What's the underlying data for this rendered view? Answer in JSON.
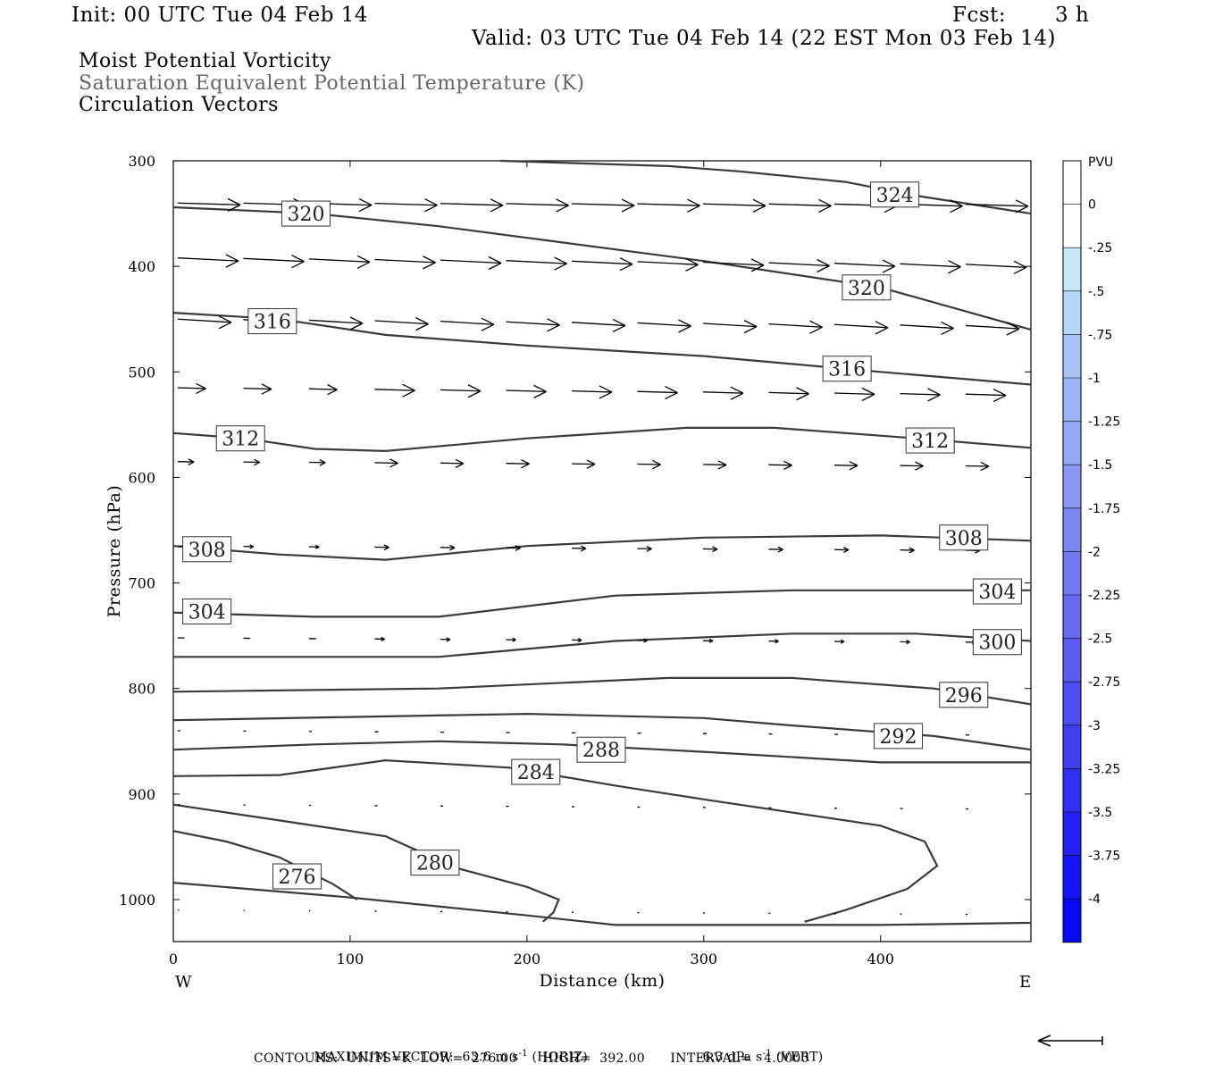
{
  "header": {
    "init": "Init: 00 UTC Tue 04 Feb 14",
    "fcst_label": "Fcst:",
    "fcst_value": "3 h",
    "valid": "Valid: 03 UTC Tue 04 Feb 14 (22 EST Mon 03 Feb 14)"
  },
  "titles": {
    "line1": "Moist Potential Vorticity",
    "line2": "Saturation Equivalent Potential Temperature (K)",
    "line3": "Circulation Vectors"
  },
  "colors": {
    "contour": "#3a3a3a",
    "title_gray": "#666666",
    "colorbar": [
      "#ffffff",
      "#ffffff",
      "#c8e8fa",
      "#b4d8fa",
      "#a8c4f8",
      "#9cb4f6",
      "#92a8f6",
      "#8898f4",
      "#7c88f2",
      "#7278f2",
      "#6868f0",
      "#5a5af0",
      "#4c4cf0",
      "#3e3ef2",
      "#3030f2",
      "#2222f4",
      "#1414f6",
      "#0808f8"
    ]
  },
  "chart_data": {
    "type": "line",
    "xlabel": "Distance (km)",
    "ylabel": "Pressure (hPa)",
    "xlim": [
      0,
      485
    ],
    "ylim": [
      1040,
      300
    ],
    "x_ticks": [
      "0",
      "100",
      "200",
      "300",
      "400"
    ],
    "y_ticks": [
      "300",
      "400",
      "500",
      "600",
      "700",
      "800",
      "900",
      "1000"
    ],
    "x_end_labels": {
      "left": "W",
      "right": "E"
    },
    "isentropes": [
      {
        "label": "324",
        "points": [
          [
            185,
            300
          ],
          [
            280,
            305
          ],
          [
            320,
            310
          ],
          [
            380,
            320
          ],
          [
            420,
            333
          ],
          [
            485,
            350
          ]
        ],
        "label_at": [
          408,
          332
        ]
      },
      {
        "label": "320",
        "points": [
          [
            0,
            344
          ],
          [
            80,
            350
          ],
          [
            150,
            362
          ],
          [
            300,
            395
          ],
          [
            400,
            420
          ],
          [
            485,
            460
          ]
        ],
        "label_at": [
          75,
          350
        ]
      },
      {
        "label": "320",
        "points": [],
        "label_at": [
          392,
          420
        ]
      },
      {
        "label": "316",
        "points": [
          [
            0,
            444
          ],
          [
            60,
            450
          ],
          [
            120,
            465
          ],
          [
            200,
            475
          ],
          [
            300,
            485
          ],
          [
            400,
            500
          ],
          [
            485,
            512
          ]
        ],
        "label_at": [
          56,
          452
        ]
      },
      {
        "label": "316",
        "points": [],
        "label_at": [
          381,
          497
        ]
      },
      {
        "label": "312",
        "points": [
          [
            0,
            558
          ],
          [
            40,
            563
          ],
          [
            80,
            573
          ],
          [
            120,
            575
          ],
          [
            200,
            563
          ],
          [
            290,
            553
          ],
          [
            340,
            553
          ],
          [
            420,
            563
          ],
          [
            485,
            572
          ]
        ],
        "label_at": [
          38,
          563
        ]
      },
      {
        "label": "312",
        "points": [],
        "label_at": [
          428,
          565
        ]
      },
      {
        "label": "308",
        "points": [
          [
            0,
            665
          ],
          [
            60,
            673
          ],
          [
            120,
            678
          ],
          [
            200,
            665
          ],
          [
            300,
            657
          ],
          [
            400,
            655
          ],
          [
            485,
            660
          ]
        ],
        "label_at": [
          19,
          668
        ]
      },
      {
        "label": "308",
        "points": [],
        "label_at": [
          447,
          657
        ]
      },
      {
        "label": "304",
        "points": [
          [
            0,
            728
          ],
          [
            80,
            732
          ],
          [
            150,
            732
          ],
          [
            250,
            712
          ],
          [
            350,
            707
          ],
          [
            485,
            707
          ]
        ],
        "label_at": [
          19,
          727
        ]
      },
      {
        "label": "304",
        "points": [],
        "label_at": [
          466,
          708
        ]
      },
      {
        "label": "300",
        "points": [
          [
            0,
            770
          ],
          [
            150,
            770
          ],
          [
            250,
            755
          ],
          [
            350,
            748
          ],
          [
            420,
            748
          ],
          [
            485,
            755
          ]
        ],
        "label_at": [
          466,
          756
        ]
      },
      {
        "label": "296",
        "points": [
          [
            0,
            803
          ],
          [
            150,
            800
          ],
          [
            280,
            790
          ],
          [
            350,
            790
          ],
          [
            430,
            800
          ],
          [
            485,
            815
          ]
        ],
        "label_at": [
          447,
          806
        ]
      },
      {
        "label": "292",
        "points": [
          [
            0,
            830
          ],
          [
            100,
            827
          ],
          [
            200,
            824
          ],
          [
            300,
            828
          ],
          [
            350,
            835
          ],
          [
            430,
            845
          ],
          [
            485,
            858
          ]
        ],
        "label_at": [
          410,
          845
        ]
      },
      {
        "label": "288",
        "points": [
          [
            0,
            858
          ],
          [
            80,
            853
          ],
          [
            150,
            850
          ],
          [
            220,
            853
          ],
          [
            300,
            860
          ],
          [
            400,
            870
          ],
          [
            485,
            870
          ]
        ],
        "label_at": [
          242,
          858
        ]
      },
      {
        "label": "284",
        "points": [
          [
            0,
            883
          ],
          [
            60,
            882
          ],
          [
            120,
            868
          ],
          [
            190,
            875
          ],
          [
            250,
            892
          ],
          [
            300,
            905
          ],
          [
            400,
            930
          ],
          [
            425,
            945
          ],
          [
            432,
            968
          ],
          [
            415,
            990
          ],
          [
            380,
            1010
          ],
          [
            357,
            1021
          ]
        ],
        "label_at": [
          205,
          879
        ]
      },
      {
        "label": "280",
        "points": [
          [
            0,
            910
          ],
          [
            60,
            925
          ],
          [
            120,
            940
          ],
          [
            160,
            970
          ],
          [
            200,
            988
          ],
          [
            218,
            1000
          ],
          [
            215,
            1012
          ],
          [
            209,
            1021
          ]
        ],
        "label_at": [
          148,
          965
        ]
      },
      {
        "label": "276",
        "points": [
          [
            0,
            935
          ],
          [
            30,
            945
          ],
          [
            60,
            960
          ],
          [
            90,
            985
          ],
          [
            104,
            1000
          ]
        ],
        "label_at": [
          70,
          978
        ]
      },
      {
        "label": "",
        "points": [
          [
            0,
            984
          ],
          [
            100,
            998
          ],
          [
            200,
            1015
          ],
          [
            250,
            1024
          ],
          [
            300,
            1024
          ],
          [
            400,
            1024
          ],
          [
            485,
            1022
          ]
        ],
        "label_at": null
      }
    ],
    "colorbar": {
      "title": "PVU",
      "labels": [
        "0",
        "-.25",
        "-.5",
        "-.75",
        "-1",
        "-1.25",
        "-1.5",
        "-1.75",
        "-2",
        "-2.25",
        "-2.5",
        "-2.75",
        "-3",
        "-3.25",
        "-3.5",
        "-3.75",
        "-4"
      ]
    }
  },
  "footer": {
    "maximum_vector": "MAXIMUM VECTOR:  63.6 m s",
    "horiz": "(HORIZ)",
    "vert_value": "6.3 dPa s",
    "vert": "(VERT)",
    "superscript": "-1",
    "contours": "CONTOURS:  UNITS=K  LOW=  276.00      HIGH=  392.00      INTERVAL=   4.0000"
  }
}
